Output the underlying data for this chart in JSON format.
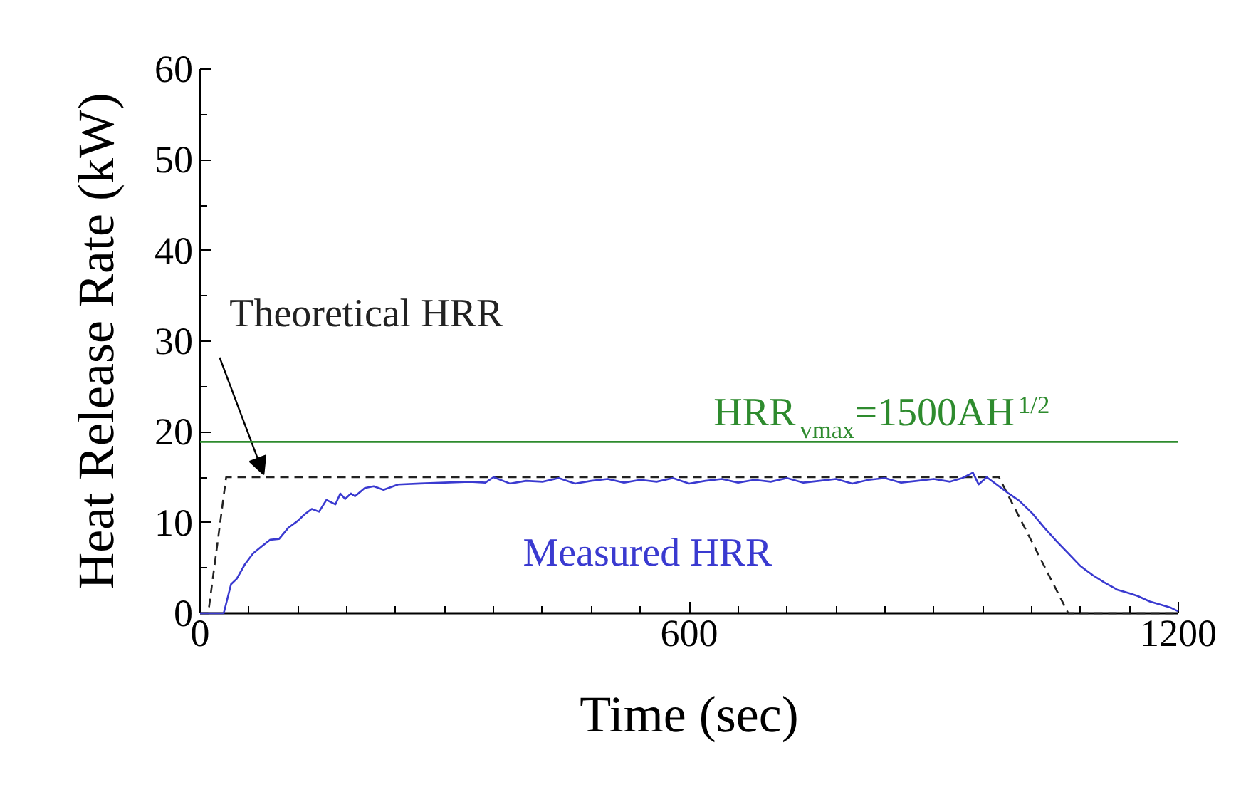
{
  "chart_data": {
    "type": "line",
    "xlabel": "Time (sec)",
    "ylabel": "Heat Release Rate (kW)",
    "xlim": [
      0,
      1200
    ],
    "xticks": [
      0,
      600,
      1200
    ],
    "ylim": [
      0,
      60
    ],
    "yticks": [
      0,
      10,
      20,
      30,
      40,
      50,
      60
    ],
    "grid": false,
    "marker": "none",
    "annotations": [
      {
        "text": "HRR$_{vmax}$=1500AH$^{1/2}$",
        "x": 630,
        "y": 18.9
      }
    ],
    "series": [
      {
        "name": "Theoretical HRR",
        "color": "#222222",
        "line_style": "dashed",
        "x": [
          0,
          10,
          32,
          980,
          1065,
          1200
        ],
        "values": [
          0,
          0,
          15,
          15,
          0,
          0
        ]
      },
      {
        "name": "Measured HRR",
        "color": "#3a3ad0",
        "line_style": "solid",
        "x": [
          0,
          29,
          38,
          45,
          55,
          65,
          76,
          86,
          97,
          108,
          120,
          128,
          137,
          146,
          155,
          166,
          172,
          178,
          185,
          190,
          202,
          213,
          225,
          243,
          270,
          300,
          331,
          350,
          360,
          380,
          400,
          420,
          440,
          460,
          480,
          500,
          520,
          540,
          560,
          580,
          600,
          620,
          640,
          660,
          680,
          700,
          720,
          740,
          760,
          780,
          800,
          820,
          840,
          860,
          880,
          900,
          920,
          935,
          948,
          955,
          965,
          980,
          992,
          1005,
          1021,
          1036,
          1051,
          1065,
          1080,
          1095,
          1109,
          1125,
          1140,
          1150,
          1165,
          1180,
          1191,
          1200
        ],
        "values": [
          0,
          0,
          3.2,
          3.8,
          5.4,
          6.6,
          7.4,
          8.1,
          8.2,
          9.4,
          10.2,
          10.9,
          11.5,
          11.2,
          12.5,
          12.0,
          13.2,
          12.6,
          13.2,
          12.9,
          13.8,
          14.0,
          13.6,
          14.2,
          14.3,
          14.4,
          14.5,
          14.4,
          15.0,
          14.3,
          14.6,
          14.5,
          14.9,
          14.3,
          14.6,
          14.8,
          14.4,
          14.7,
          14.5,
          14.9,
          14.3,
          14.6,
          14.8,
          14.4,
          14.7,
          14.5,
          14.9,
          14.4,
          14.6,
          14.8,
          14.3,
          14.7,
          14.9,
          14.4,
          14.6,
          14.8,
          14.5,
          14.9,
          15.5,
          14.2,
          15.0,
          14.0,
          13.2,
          12.4,
          11.0,
          9.4,
          7.9,
          6.6,
          5.2,
          4.2,
          3.4,
          2.6,
          2.2,
          1.9,
          1.3,
          0.9,
          0.6,
          0.2
        ]
      }
    ],
    "ref_lines": [
      {
        "axis": "y",
        "value": 18.9,
        "color": "#2e8b2e"
      }
    ]
  }
}
